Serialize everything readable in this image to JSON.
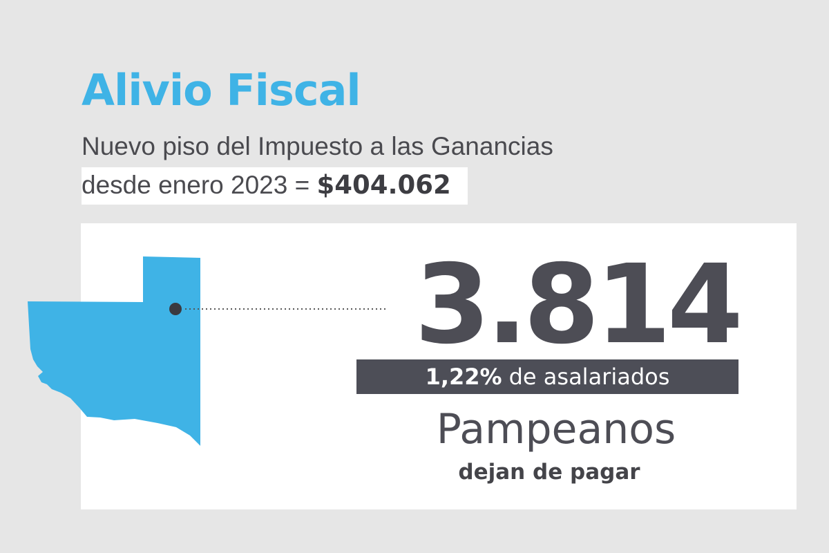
{
  "header": {
    "title": "Alivio Fiscal",
    "subtitle_line1": "Nuevo piso del Impuesto a las Ganancias",
    "subtitle_line2_prefix": "desde enero 2023 = ",
    "threshold_amount": "$404.062"
  },
  "stat": {
    "value": "3.814",
    "percent": "1,22%",
    "percent_suffix": "de asalariados",
    "region": "Pampeanos",
    "caption": "dejan de pagar"
  },
  "colors": {
    "accent": "#3fb3e6",
    "map_fill": "#3fb3e6",
    "text_dark": "#4d4d55",
    "bar_bg": "#4d4e57",
    "background": "#e6e6e6",
    "card_bg": "#ffffff"
  },
  "icons": {
    "map": "la-pampa-province-map",
    "pointer": "map-pointer-dot"
  }
}
